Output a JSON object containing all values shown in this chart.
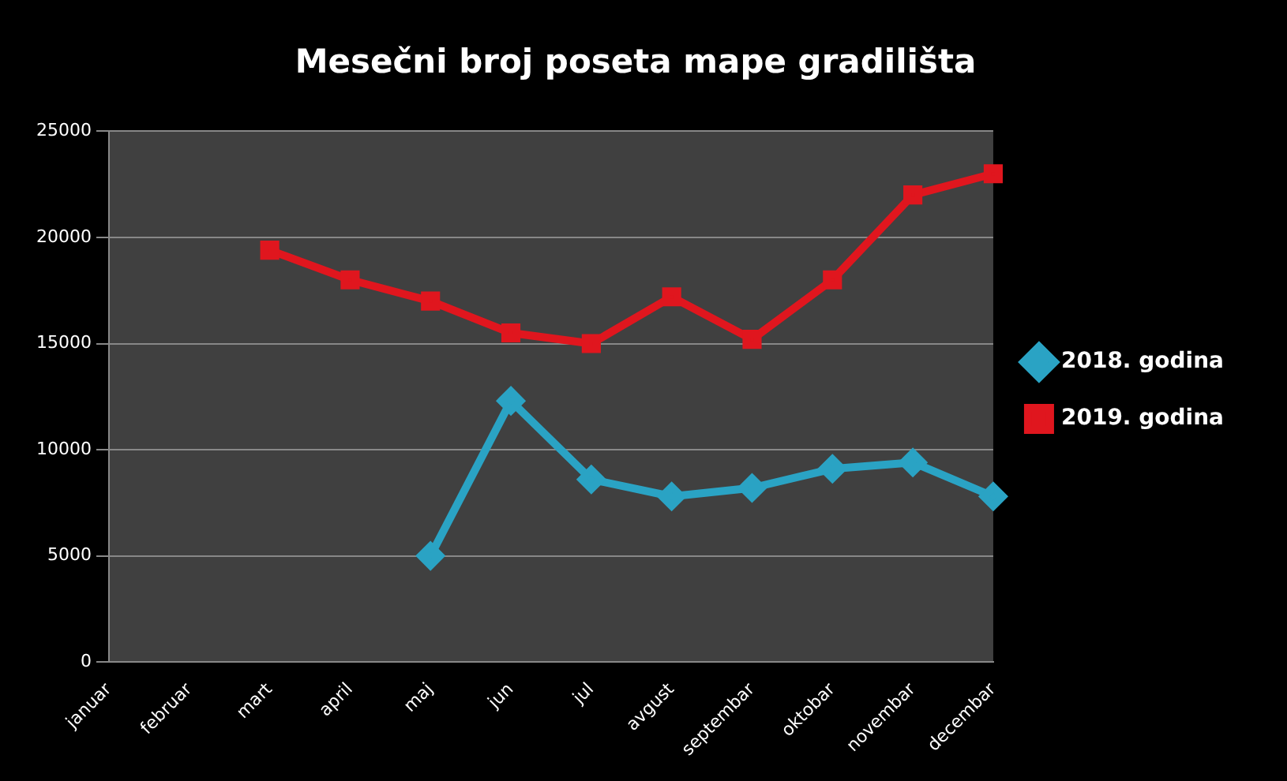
{
  "chart_data": {
    "type": "line",
    "title": "Mesečni broj poseta mape gradilišta",
    "categories": [
      "januar",
      "februar",
      "mart",
      "april",
      "maj",
      "jun",
      "jul",
      "avgust",
      "septembar",
      "oktobar",
      "novembar",
      "decembar"
    ],
    "series": [
      {
        "name": "2018. godina",
        "color": "#2aa3c4",
        "marker": "diamond",
        "values": [
          null,
          null,
          null,
          null,
          5000,
          12300,
          8600,
          7800,
          8200,
          9100,
          9400,
          7800
        ]
      },
      {
        "name": "2019. godina",
        "color": "#e0161e",
        "marker": "square",
        "values": [
          null,
          null,
          19400,
          18000,
          17000,
          15500,
          15000,
          17200,
          15200,
          18000,
          22000,
          23000
        ]
      }
    ],
    "ylim": [
      0,
      25000
    ],
    "yticks": [
      0,
      5000,
      10000,
      15000,
      20000,
      25000
    ],
    "grid": "y",
    "legend": "right",
    "line_style": "solid"
  }
}
